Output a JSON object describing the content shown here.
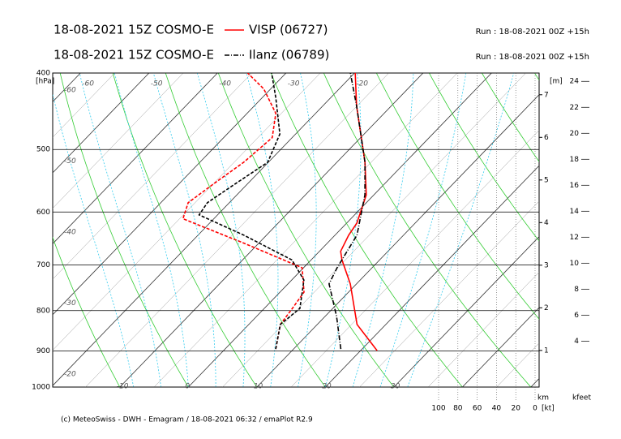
{
  "chart_data": {
    "type": "emagram",
    "footer": "(c) MeteoSwiss - DWH - Emagram / 18-08-2021 06:32 / emaPlot R2.9",
    "y_label": "[hPa]",
    "ylim": [
      1000,
      400
    ],
    "yticks": [
      400,
      500,
      600,
      700,
      800,
      900,
      1000
    ],
    "xlim": [
      -19.8,
      51.2
    ],
    "xticks": [
      -60,
      -50,
      -40,
      -30,
      -20,
      -10,
      0,
      10,
      20,
      30
    ],
    "isotherm_step": 5,
    "dry_adiabats": [
      -30,
      -20,
      -10,
      0,
      10,
      20,
      30,
      40,
      50,
      60,
      70,
      80,
      90,
      100,
      110,
      120,
      130,
      140,
      150
    ],
    "moist_adiabats": [
      -8,
      -4,
      0,
      4,
      8,
      12,
      16,
      20,
      24,
      28,
      32
    ],
    "height_label": "[m]",
    "height_unit": "km",
    "height_lim": [
      0.14,
      7.51
    ],
    "height_ticks": [
      1,
      2,
      3,
      4,
      5,
      6,
      7
    ],
    "kfeet_unit": "kfeet",
    "kfeet_lim": [
      0.46,
      24.64
    ],
    "kfeet_ticks": [
      4,
      6,
      8,
      10,
      12,
      14,
      16,
      18,
      20,
      22,
      24
    ],
    "wind_unit": "[kt]",
    "wind_lim": [
      100,
      0
    ],
    "wind_ticks": [
      100,
      80,
      60,
      40,
      20,
      0
    ],
    "series": [
      {
        "name": "VISP (06727)",
        "label": "18-08-2021 15Z COSMO-E",
        "run": "Run : 18-08-2021 00Z +15h",
        "color": "#ff0000",
        "style": "solid",
        "temperature": {
          "p": [
            899,
            833,
            740,
            690,
            673,
            642,
            620,
            571,
            519,
            483,
            440,
            400
          ],
          "t": [
            22.4,
            15.8,
            9.1,
            4.5,
            3.1,
            2.0,
            1.5,
            -1.1,
            -5.9,
            -9.9,
            -15.1,
            -19.9
          ]
        },
        "dewpoint": {
          "p": [
            895,
            833,
            795,
            758,
            706,
            657,
            612,
            584,
            551,
            519,
            483,
            450,
            419,
            400
          ],
          "t": [
            7.4,
            4.6,
            4.1,
            3.5,
            -0.2,
            -12.2,
            -24.5,
            -26.0,
            -24.9,
            -23.6,
            -22.9,
            -25.8,
            -31.0,
            -35.6
          ]
        }
      },
      {
        "name": "Ilanz (06789)",
        "label": "18-08-2021 15Z COSMO-E",
        "run": "Run : 18-08-2021 00Z +15h",
        "color": "#000000",
        "style": "dashdot",
        "temperature": {
          "p": [
            895,
            814,
            740,
            706,
            642,
            571,
            519,
            440,
            400
          ],
          "t": [
            16.9,
            11.7,
            6.0,
            4.9,
            3.2,
            -1.3,
            -5.9,
            -15.1,
            -20.6
          ]
        },
        "dewpoint": {
          "p": [
            895,
            833,
            795,
            732,
            690,
            642,
            605,
            584,
            557,
            519,
            478,
            430,
            400
          ],
          "t": [
            7.4,
            4.6,
            5.2,
            1.8,
            -2.8,
            -13.3,
            -22.7,
            -23.2,
            -22.0,
            -20.1,
            -22.3,
            -28.0,
            -32.1
          ]
        }
      }
    ]
  }
}
